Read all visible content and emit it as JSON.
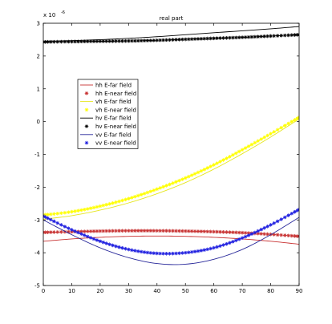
{
  "chart_data": {
    "type": "line",
    "title": "real part",
    "xlabel": "",
    "ylabel": "",
    "xlim": [
      0,
      90
    ],
    "ylim": [
      -5,
      3
    ],
    "y_exponent_label": "x 10",
    "y_exponent_power": "-6",
    "x_ticks": [
      "0",
      "10",
      "20",
      "30",
      "40",
      "50",
      "60",
      "70",
      "80",
      "90"
    ],
    "y_ticks": [
      "-5",
      "-4",
      "-3",
      "-2",
      "-1",
      "0",
      "1",
      "2",
      "3"
    ],
    "legend_placement": "left",
    "grid": false,
    "series": [
      {
        "name": "hh E-far field",
        "color": "#c83232",
        "style": "line",
        "x": [
          0,
          10,
          20,
          30,
          40,
          50,
          60,
          70,
          80,
          90
        ],
        "y": [
          -3.65,
          -3.58,
          -3.53,
          -3.5,
          -3.49,
          -3.5,
          -3.53,
          -3.58,
          -3.65,
          -3.74
        ]
      },
      {
        "name": "hh E-near field",
        "color": "#c83232",
        "style": "marker",
        "x": [
          0,
          10,
          20,
          30,
          40,
          50,
          60,
          70,
          80,
          90
        ],
        "y": [
          -3.38,
          -3.36,
          -3.34,
          -3.33,
          -3.33,
          -3.34,
          -3.36,
          -3.39,
          -3.44,
          -3.5
        ]
      },
      {
        "name": "vh E-far field",
        "color": "#e6e61e",
        "style": "line",
        "x": [
          0,
          10,
          20,
          30,
          40,
          50,
          60,
          70,
          80,
          90
        ],
        "y": [
          -2.98,
          -2.87,
          -2.7,
          -2.48,
          -2.2,
          -1.86,
          -1.45,
          -0.98,
          -0.47,
          0.08
        ]
      },
      {
        "name": "vh E-near field",
        "color": "#ffff00",
        "style": "marker",
        "x": [
          0,
          10,
          20,
          30,
          40,
          50,
          60,
          70,
          80,
          90
        ],
        "y": [
          -2.85,
          -2.75,
          -2.58,
          -2.35,
          -2.06,
          -1.72,
          -1.32,
          -0.86,
          -0.37,
          0.13
        ]
      },
      {
        "name": "hv E-far field",
        "color": "#000000",
        "style": "line",
        "x": [
          0,
          10,
          20,
          30,
          40,
          50,
          60,
          70,
          80,
          90
        ],
        "y": [
          2.45,
          2.47,
          2.5,
          2.54,
          2.59,
          2.65,
          2.71,
          2.77,
          2.83,
          2.9
        ]
      },
      {
        "name": "hv E-near field",
        "color": "#000000",
        "style": "marker",
        "x": [
          0,
          10,
          20,
          30,
          40,
          50,
          60,
          70,
          80,
          90
        ],
        "y": [
          2.43,
          2.44,
          2.45,
          2.46,
          2.48,
          2.51,
          2.54,
          2.57,
          2.61,
          2.65
        ]
      },
      {
        "name": "vv E-far field",
        "color": "#28289a",
        "style": "line",
        "x": [
          0,
          10,
          20,
          30,
          40,
          50,
          60,
          70,
          80,
          90
        ],
        "y": [
          -3.0,
          -3.45,
          -3.85,
          -4.15,
          -4.33,
          -4.35,
          -4.2,
          -3.9,
          -3.45,
          -2.92
        ]
      },
      {
        "name": "vv E-near field",
        "color": "#2020e0",
        "style": "marker",
        "x": [
          0,
          10,
          20,
          30,
          40,
          50,
          60,
          70,
          80,
          90
        ],
        "y": [
          -2.88,
          -3.3,
          -3.65,
          -3.9,
          -4.02,
          -4.0,
          -3.85,
          -3.55,
          -3.15,
          -2.68
        ]
      }
    ]
  }
}
